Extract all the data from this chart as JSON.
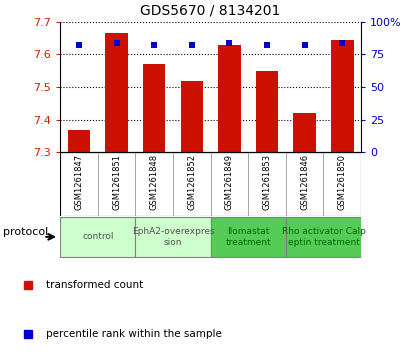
{
  "title": "GDS5670 / 8134201",
  "samples": [
    "GSM1261847",
    "GSM1261851",
    "GSM1261848",
    "GSM1261852",
    "GSM1261849",
    "GSM1261853",
    "GSM1261846",
    "GSM1261850"
  ],
  "bar_values": [
    7.37,
    7.665,
    7.57,
    7.52,
    7.63,
    7.55,
    7.42,
    7.645
  ],
  "percentile_values": [
    82,
    84,
    82,
    82,
    84,
    82,
    82,
    84
  ],
  "ylim_left": [
    7.3,
    7.7
  ],
  "ylim_right": [
    0,
    100
  ],
  "yticks_left": [
    7.3,
    7.4,
    7.5,
    7.6,
    7.7
  ],
  "yticks_right": [
    0,
    25,
    50,
    75,
    100
  ],
  "bar_color": "#CC1100",
  "dot_color": "#0000CC",
  "protocol_groups": [
    {
      "label": "control",
      "indices": [
        0,
        1
      ],
      "color": "#CCFFCC",
      "text_color": "#555555"
    },
    {
      "label": "EphA2-overexpres\nsion",
      "indices": [
        2,
        3
      ],
      "color": "#CCFFCC",
      "text_color": "#555555"
    },
    {
      "label": "Ilomastat\ntreatment",
      "indices": [
        4,
        5
      ],
      "color": "#55CC55",
      "text_color": "#006600"
    },
    {
      "label": "Rho activator Calp\neptin treatment",
      "indices": [
        6,
        7
      ],
      "color": "#55CC55",
      "text_color": "#006600"
    }
  ],
  "tick_label_color_left": "#CC2200",
  "tick_label_color_right": "#0000CC",
  "legend_items": [
    {
      "label": "transformed count",
      "color": "#CC1100"
    },
    {
      "label": "percentile rank within the sample",
      "color": "#0000CC"
    }
  ],
  "protocol_label": "protocol",
  "bar_bottom": 7.3,
  "xtick_bg_color": "#CCCCCC",
  "spine_color": "#000000"
}
